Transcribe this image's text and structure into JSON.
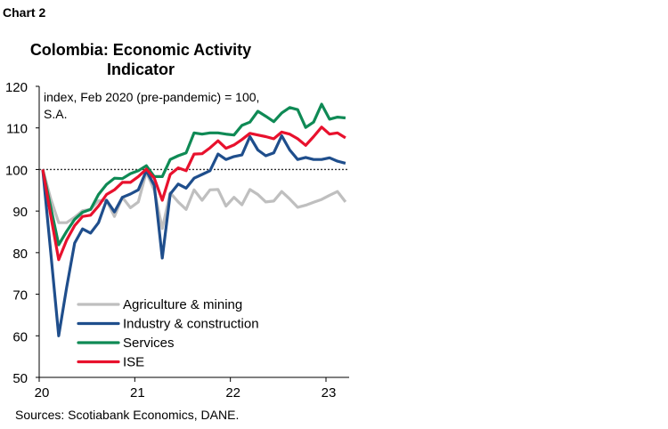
{
  "header": {
    "label": "Chart 2"
  },
  "chart_data": {
    "type": "line",
    "title": [
      "Colombia: Economic Activity",
      "Indicator"
    ],
    "annotation": [
      "index, Feb 2020 (pre-pandemic) = 100,",
      "S.A."
    ],
    "source": "Sources: Scotiabank Economics, DANE.",
    "xlabel": "",
    "ylabel": "",
    "ylim": [
      50,
      120
    ],
    "yticks": [
      50,
      60,
      70,
      80,
      90,
      100,
      110,
      120
    ],
    "xticks": [
      {
        "label": "20",
        "x": "2020-01"
      },
      {
        "label": "21",
        "x": "2021-01"
      },
      {
        "label": "22",
        "x": "2022-01"
      },
      {
        "label": "23",
        "x": "2023-01"
      }
    ],
    "reference_line": {
      "y": 100,
      "style": "dotted"
    },
    "legend_position": "bottom-left",
    "x_start": "2020-02",
    "x_end": "2023-04",
    "frequency": "monthly",
    "series": [
      {
        "name": "Agriculture & mining",
        "color": "#bfbfbf",
        "values": [
          100,
          93,
          87.2,
          87.2,
          88.5,
          90.1,
          90.4,
          92.5,
          92.6,
          88.7,
          93.3,
          90.8,
          92.2,
          99.4,
          95,
          85.8,
          94.4,
          92.2,
          90.4,
          95.1,
          92.6,
          95.1,
          95.2,
          91.2,
          93.3,
          91.5,
          95.2,
          94.0,
          92.2,
          92.4,
          94.7,
          92.9,
          90.9,
          91.4,
          92.1,
          92.8,
          93.8,
          94.7,
          92.2
        ]
      },
      {
        "name": "Industry & construction",
        "color": "#1f4e8c",
        "values": [
          100,
          80.2,
          60,
          71.6,
          82.3,
          85.7,
          84.7,
          87.2,
          92.6,
          89.8,
          93.3,
          94.1,
          95.1,
          99.7,
          96.2,
          78.7,
          94.1,
          96.5,
          95.5,
          97.9,
          98.8,
          99.7,
          103.7,
          102.4,
          103.1,
          103.5,
          107.9,
          104.7,
          103.3,
          104.0,
          108.1,
          104.7,
          102.4,
          102.9,
          102.4,
          102.4,
          102.8,
          102.0,
          101.5
        ]
      },
      {
        "name": "Services",
        "color": "#0f8a55",
        "values": [
          100,
          91,
          81.9,
          85.1,
          88,
          89.7,
          90.4,
          94.0,
          96.4,
          97.9,
          97.8,
          99.0,
          99.7,
          100.9,
          98.3,
          98.3,
          102.4,
          103.3,
          104.0,
          108.8,
          108.5,
          108.8,
          108.8,
          108.5,
          108.3,
          110.6,
          111.4,
          114.0,
          112.8,
          111.5,
          113.6,
          114.9,
          114.4,
          110.1,
          111.4,
          115.7,
          112.1,
          112.6,
          112.4
        ]
      },
      {
        "name": "ISE",
        "color": "#e8112d",
        "values": [
          100,
          89,
          78.3,
          83.0,
          86.5,
          88.7,
          89.0,
          91.2,
          94.0,
          95.1,
          96.9,
          96.9,
          98.3,
          100.1,
          97.9,
          92.6,
          98.8,
          100.4,
          99.7,
          103.7,
          103.8,
          105.2,
          106.9,
          105.1,
          105.9,
          107.2,
          108.7,
          108.3,
          107.9,
          107.4,
          109.0,
          108.5,
          107.4,
          105.8,
          107.9,
          110.2,
          108.5,
          108.8,
          107.6
        ]
      }
    ]
  }
}
